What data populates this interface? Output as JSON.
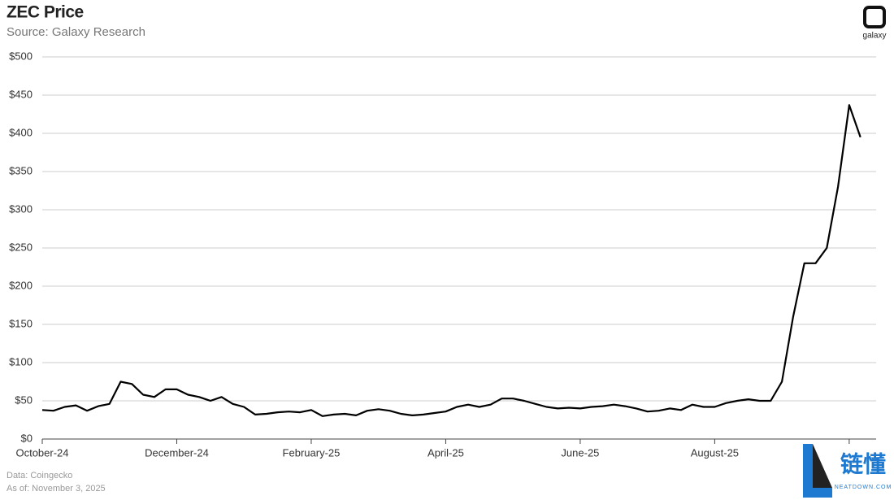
{
  "chart_data": {
    "type": "line",
    "title": "ZEC Price",
    "subtitle": "Source: Galaxy Research",
    "logo_text": "galaxy",
    "footnotes": [
      "Data: Coingecko",
      "As of: November 3, 2025"
    ],
    "watermark": {
      "text": "链懂",
      "url": "NEATDOWN.COM"
    },
    "categories": [
      "October-24",
      null,
      null,
      null,
      null,
      null,
      null,
      null,
      null,
      null,
      null,
      null,
      "December-24",
      null,
      null,
      null,
      null,
      null,
      null,
      null,
      null,
      null,
      null,
      null,
      "February-25",
      null,
      null,
      null,
      null,
      null,
      null,
      null,
      null,
      null,
      null,
      null,
      "April-25",
      null,
      null,
      null,
      null,
      null,
      null,
      null,
      null,
      null,
      null,
      null,
      "June-25",
      null,
      null,
      null,
      null,
      null,
      null,
      null,
      null,
      null,
      null,
      null,
      "August-25",
      null,
      null,
      null,
      null,
      null,
      null,
      null,
      null,
      null,
      null,
      null,
      null,
      null
    ],
    "values": [
      38,
      37,
      42,
      44,
      37,
      43,
      46,
      75,
      72,
      58,
      55,
      65,
      65,
      58,
      55,
      50,
      55,
      46,
      42,
      32,
      33,
      35,
      36,
      35,
      38,
      30,
      32,
      33,
      31,
      37,
      39,
      37,
      33,
      31,
      32,
      34,
      36,
      42,
      45,
      42,
      45,
      53,
      53,
      50,
      46,
      42,
      40,
      41,
      40,
      42,
      43,
      45,
      43,
      40,
      36,
      37,
      40,
      38,
      45,
      42,
      42,
      47,
      50,
      52,
      50,
      50,
      75,
      160,
      230,
      230,
      250,
      330,
      437,
      395
    ],
    "color": "#000000",
    "ylim": [
      0,
      500
    ],
    "yticks": [
      {
        "value": 0,
        "label": "$0"
      },
      {
        "value": 50,
        "label": "$50"
      },
      {
        "value": 100,
        "label": "$100"
      },
      {
        "value": 150,
        "label": "$150"
      },
      {
        "value": 200,
        "label": "$200"
      },
      {
        "value": 250,
        "label": "$250"
      },
      {
        "value": 300,
        "label": "$300"
      },
      {
        "value": 350,
        "label": "$350"
      },
      {
        "value": 400,
        "label": "$400"
      },
      {
        "value": 450,
        "label": "$450"
      },
      {
        "value": 500,
        "label": "$500"
      }
    ],
    "xtick_every": 12,
    "grid": true
  }
}
